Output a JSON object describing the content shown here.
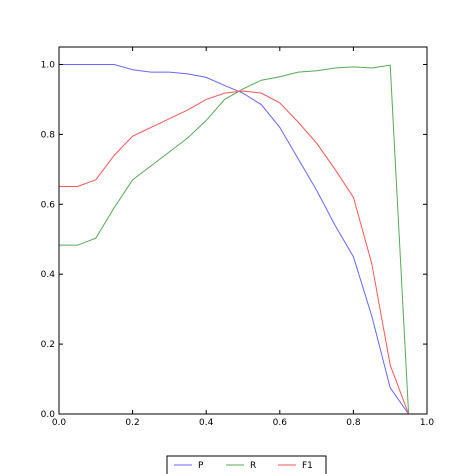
{
  "chart_data": {
    "type": "line",
    "title": "",
    "xlabel": "",
    "ylabel": "",
    "xlim": [
      0.0,
      1.0
    ],
    "ylim": [
      0.0,
      1.05
    ],
    "xticks": [
      "0.0",
      "0.2",
      "0.4",
      "0.6",
      "0.8",
      "1.0"
    ],
    "yticks": [
      "0.0",
      "0.2",
      "0.4",
      "0.6",
      "0.8",
      "1.0"
    ],
    "grid": false,
    "legend": {
      "placement": "bottom-center",
      "columns": 3
    },
    "x": [
      0.0,
      0.05,
      0.1,
      0.15,
      0.2,
      0.25,
      0.3,
      0.35,
      0.4,
      0.45,
      0.5,
      0.55,
      0.6,
      0.65,
      0.7,
      0.75,
      0.8,
      0.85,
      0.9,
      0.95,
      1.0
    ],
    "series": [
      {
        "name": "P",
        "color": "#6666ff",
        "values": [
          1.0,
          1.0,
          1.0,
          1.0,
          0.985,
          0.978,
          0.978,
          0.973,
          0.963,
          0.94,
          0.918,
          0.885,
          0.82,
          0.73,
          0.64,
          0.54,
          0.45,
          0.28,
          0.075,
          0.0,
          0.0
        ]
      },
      {
        "name": "R",
        "color": "#55aa55",
        "values": [
          0.483,
          0.483,
          0.503,
          0.59,
          0.67,
          0.71,
          0.75,
          0.79,
          0.84,
          0.9,
          0.93,
          0.955,
          0.965,
          0.978,
          0.982,
          0.99,
          0.993,
          0.99,
          0.998,
          0.0,
          0.0
        ]
      },
      {
        "name": "F1",
        "color": "#ff5555",
        "values": [
          0.651,
          0.651,
          0.67,
          0.74,
          0.795,
          0.82,
          0.845,
          0.87,
          0.9,
          0.918,
          0.924,
          0.918,
          0.89,
          0.835,
          0.775,
          0.7,
          0.62,
          0.43,
          0.14,
          0.0,
          0.0
        ]
      }
    ]
  }
}
